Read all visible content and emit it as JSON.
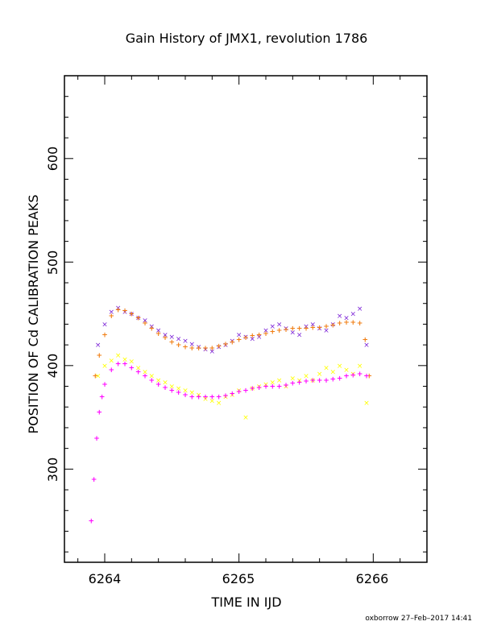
{
  "chart_data": {
    "type": "scatter",
    "title": "Gain History of JMX1, revolution 1786",
    "xlabel": "TIME IN IJD",
    "ylabel": "POSITION OF Cd CALIBRATION PEAKS",
    "xlim": [
      6263.7,
      6266.4
    ],
    "ylim": [
      210,
      680
    ],
    "x_ticks": [
      "6264",
      "6265",
      "6266"
    ],
    "x_tick_values": [
      6264,
      6265,
      6266
    ],
    "y_ticks": [
      "300",
      "400",
      "500",
      "600"
    ],
    "y_tick_values": [
      300,
      400,
      500,
      600
    ],
    "footer": "oxborrow 27–Feb–2017 14:41",
    "series": [
      {
        "marker": "x",
        "color": "#7a1fd6",
        "x": [
          6263.95,
          6264.0,
          6264.05,
          6264.1,
          6264.15,
          6264.2,
          6264.25,
          6264.3,
          6264.35,
          6264.4,
          6264.45,
          6264.5,
          6264.55,
          6264.6,
          6264.65,
          6264.7,
          6264.75,
          6264.8,
          6264.85,
          6264.9,
          6264.95,
          6265.0,
          6265.05,
          6265.1,
          6265.15,
          6265.2,
          6265.25,
          6265.3,
          6265.35,
          6265.4,
          6265.45,
          6265.5,
          6265.55,
          6265.6,
          6265.65,
          6265.7,
          6265.75,
          6265.8,
          6265.85,
          6265.9,
          6265.95
        ],
        "y": [
          420,
          440,
          452,
          456,
          452,
          450,
          446,
          444,
          438,
          434,
          430,
          428,
          426,
          424,
          421,
          418,
          416,
          414,
          418,
          420,
          424,
          430,
          428,
          426,
          428,
          434,
          438,
          440,
          436,
          432,
          430,
          438,
          440,
          436,
          434,
          440,
          448,
          446,
          450,
          455,
          420
        ]
      },
      {
        "marker": "+",
        "color": "#f07c10",
        "x": [
          6263.93,
          6263.96,
          6264.0,
          6264.05,
          6264.1,
          6264.15,
          6264.2,
          6264.25,
          6264.3,
          6264.35,
          6264.4,
          6264.45,
          6264.5,
          6264.55,
          6264.6,
          6264.65,
          6264.7,
          6264.75,
          6264.8,
          6264.85,
          6264.9,
          6264.95,
          6265.0,
          6265.05,
          6265.1,
          6265.15,
          6265.2,
          6265.25,
          6265.3,
          6265.35,
          6265.4,
          6265.45,
          6265.5,
          6265.55,
          6265.6,
          6265.65,
          6265.7,
          6265.75,
          6265.8,
          6265.85,
          6265.9,
          6265.94,
          6265.97
        ],
        "y": [
          390,
          410,
          430,
          448,
          454,
          453,
          450,
          446,
          441,
          436,
          431,
          427,
          423,
          420,
          418,
          417,
          417,
          417,
          417,
          419,
          421,
          423,
          425,
          427,
          429,
          430,
          431,
          433,
          434,
          435,
          436,
          436,
          436,
          437,
          437,
          438,
          439,
          441,
          442,
          442,
          441,
          425,
          390
        ]
      },
      {
        "marker": "x",
        "color": "#ffff00",
        "x": [
          6263.95,
          6264.0,
          6264.05,
          6264.1,
          6264.15,
          6264.2,
          6264.25,
          6264.3,
          6264.35,
          6264.4,
          6264.45,
          6264.5,
          6264.55,
          6264.6,
          6264.65,
          6264.7,
          6264.75,
          6264.8,
          6264.85,
          6264.9,
          6264.95,
          6265.0,
          6265.05,
          6265.1,
          6265.15,
          6265.2,
          6265.25,
          6265.3,
          6265.35,
          6265.4,
          6265.45,
          6265.5,
          6265.55,
          6265.6,
          6265.65,
          6265.7,
          6265.75,
          6265.8,
          6265.85,
          6265.9,
          6265.95
        ],
        "y": [
          390,
          400,
          405,
          410,
          406,
          404,
          398,
          394,
          390,
          386,
          384,
          380,
          378,
          376,
          374,
          372,
          368,
          366,
          364,
          370,
          372,
          376,
          350,
          378,
          380,
          382,
          384,
          386,
          380,
          388,
          386,
          390,
          386,
          392,
          398,
          394,
          400,
          396,
          392,
          400,
          364
        ]
      },
      {
        "marker": "+",
        "color": "#ff00ff",
        "x": [
          6263.9,
          6263.92,
          6263.94,
          6263.96,
          6263.98,
          6264.0,
          6264.05,
          6264.1,
          6264.15,
          6264.2,
          6264.25,
          6264.3,
          6264.35,
          6264.4,
          6264.45,
          6264.5,
          6264.55,
          6264.6,
          6264.65,
          6264.7,
          6264.75,
          6264.8,
          6264.85,
          6264.9,
          6264.95,
          6265.0,
          6265.05,
          6265.1,
          6265.15,
          6265.2,
          6265.25,
          6265.3,
          6265.35,
          6265.4,
          6265.45,
          6265.5,
          6265.55,
          6265.6,
          6265.65,
          6265.7,
          6265.75,
          6265.8,
          6265.85,
          6265.9,
          6265.95
        ],
        "y": [
          250,
          290,
          330,
          355,
          370,
          382,
          396,
          402,
          402,
          398,
          394,
          390,
          386,
          382,
          379,
          376,
          374,
          372,
          370,
          370,
          370,
          370,
          370,
          371,
          373,
          375,
          376,
          378,
          379,
          380,
          380,
          380,
          381,
          383,
          384,
          385,
          386,
          386,
          386,
          387,
          388,
          390,
          391,
          392,
          390
        ]
      }
    ]
  }
}
